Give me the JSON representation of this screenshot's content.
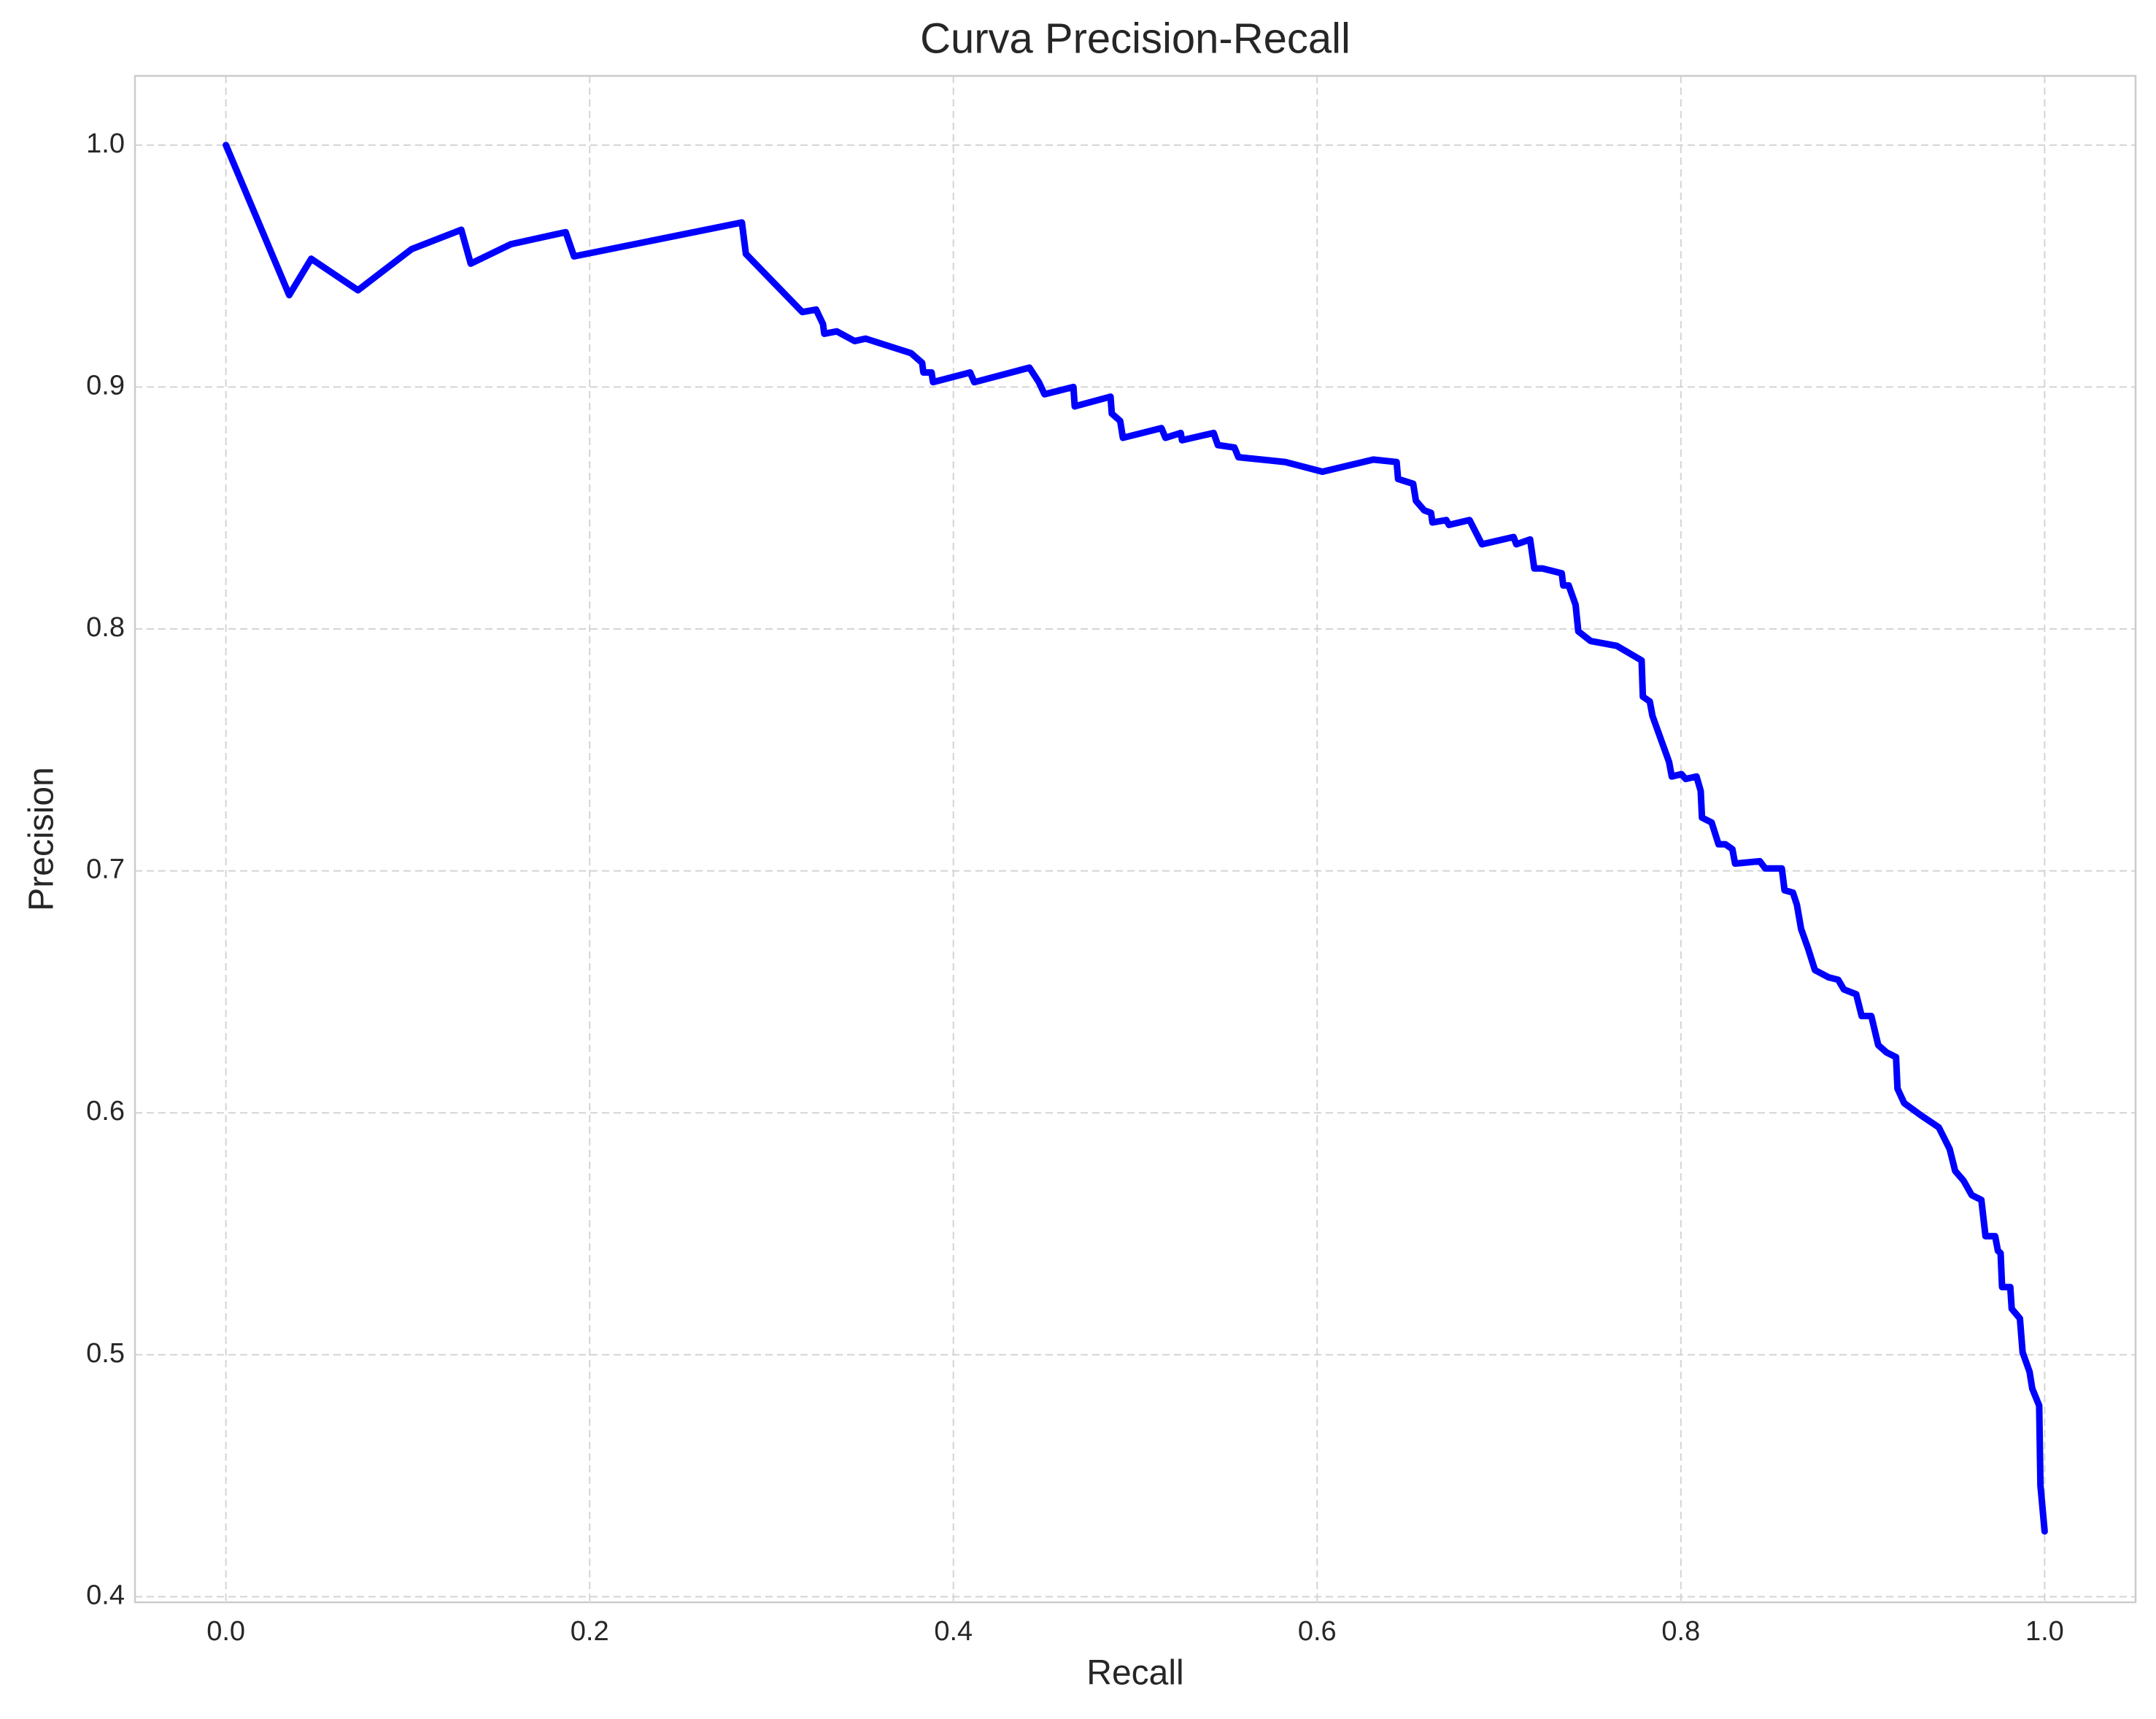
{
  "chart_data": {
    "type": "line",
    "title": "Curva Precision-Recall",
    "xlabel": "Recall",
    "ylabel": "Precision",
    "xlim": [
      -0.05,
      1.05
    ],
    "ylim": [
      0.3977,
      1.0286
    ],
    "xticks": [
      {
        "value": 0,
        "label": "0.0"
      },
      0.2,
      0.4,
      0.6,
      0.8,
      {
        "value": 1,
        "label": "1.0"
      }
    ],
    "yticks": [
      0.4,
      0.5,
      0.6,
      0.7,
      0.8,
      0.9,
      {
        "value": 1,
        "label": "1.0"
      }
    ],
    "grid": true,
    "series": [
      {
        "name": "Precision-Recall",
        "color": "#0000ff",
        "x": [
          0,
          0.0348,
          0.0469,
          0.0726,
          0.1021,
          0.1294,
          0.1346,
          0.1566,
          0.1868,
          0.1914,
          0.2837,
          0.2859,
          0.3169,
          0.3245,
          0.3283,
          0.329,
          0.3359,
          0.3457,
          0.3517,
          0.3767,
          0.3828,
          0.3835,
          0.388,
          0.3888,
          0.4092,
          0.4115,
          0.4418,
          0.447,
          0.4501,
          0.466,
          0.4667,
          0.4864,
          0.4871,
          0.4917,
          0.4932,
          0.5144,
          0.5166,
          0.525,
          0.5257,
          0.5431,
          0.5454,
          0.5545,
          0.5567,
          0.5825,
          0.6029,
          0.6309,
          0.6437,
          0.6445,
          0.6528,
          0.6543,
          0.6589,
          0.6626,
          0.6634,
          0.671,
          0.6725,
          0.6838,
          0.6906,
          0.708,
          0.7095,
          0.7171,
          0.7194,
          0.7239,
          0.7345,
          0.7353,
          0.7383,
          0.7421,
          0.7436,
          0.7504,
          0.7648,
          0.7784,
          0.7791,
          0.7829,
          0.7844,
          0.7935,
          0.795,
          0.8003,
          0.8026,
          0.8086,
          0.8109,
          0.8116,
          0.8169,
          0.8207,
          0.8245,
          0.8283,
          0.8298,
          0.8434,
          0.8464,
          0.8555,
          0.857,
          0.8616,
          0.8638,
          0.8661,
          0.8699,
          0.8737,
          0.8812,
          0.8865,
          0.8896,
          0.8964,
          0.8994,
          0.9047,
          0.9085,
          0.913,
          0.9183,
          0.9191,
          0.9228,
          0.9319,
          0.9418,
          0.9478,
          0.9508,
          0.9554,
          0.9599,
          0.9652,
          0.9675,
          0.9728,
          0.9743,
          0.9758,
          0.9766,
          0.9811,
          0.9819,
          0.9864,
          0.9879,
          0.9917,
          0.9932,
          0.997,
          0.9977,
          1.0
        ],
        "values": [
          1.0,
          0.938,
          0.953,
          0.94,
          0.957,
          0.965,
          0.951,
          0.959,
          0.964,
          0.954,
          0.968,
          0.955,
          0.931,
          0.932,
          0.926,
          0.922,
          0.923,
          0.919,
          0.92,
          0.914,
          0.91,
          0.906,
          0.906,
          0.902,
          0.906,
          0.902,
          0.908,
          0.902,
          0.897,
          0.9,
          0.892,
          0.896,
          0.889,
          0.886,
          0.879,
          0.883,
          0.879,
          0.881,
          0.878,
          0.881,
          0.876,
          0.875,
          0.871,
          0.869,
          0.865,
          0.87,
          0.869,
          0.862,
          0.86,
          0.853,
          0.849,
          0.848,
          0.844,
          0.845,
          0.843,
          0.845,
          0.835,
          0.838,
          0.835,
          0.837,
          0.825,
          0.825,
          0.823,
          0.818,
          0.818,
          0.81,
          0.799,
          0.795,
          0.793,
          0.787,
          0.772,
          0.77,
          0.764,
          0.745,
          0.739,
          0.74,
          0.738,
          0.739,
          0.733,
          0.722,
          0.72,
          0.711,
          0.711,
          0.709,
          0.703,
          0.704,
          0.701,
          0.701,
          0.692,
          0.691,
          0.686,
          0.676,
          0.668,
          0.659,
          0.656,
          0.655,
          0.651,
          0.649,
          0.64,
          0.64,
          0.628,
          0.625,
          0.623,
          0.61,
          0.604,
          0.599,
          0.594,
          0.585,
          0.576,
          0.572,
          0.566,
          0.564,
          0.549,
          0.549,
          0.543,
          0.542,
          0.528,
          0.528,
          0.519,
          0.515,
          0.501,
          0.493,
          0.486,
          0.479,
          0.446,
          0.427
        ]
      }
    ]
  }
}
